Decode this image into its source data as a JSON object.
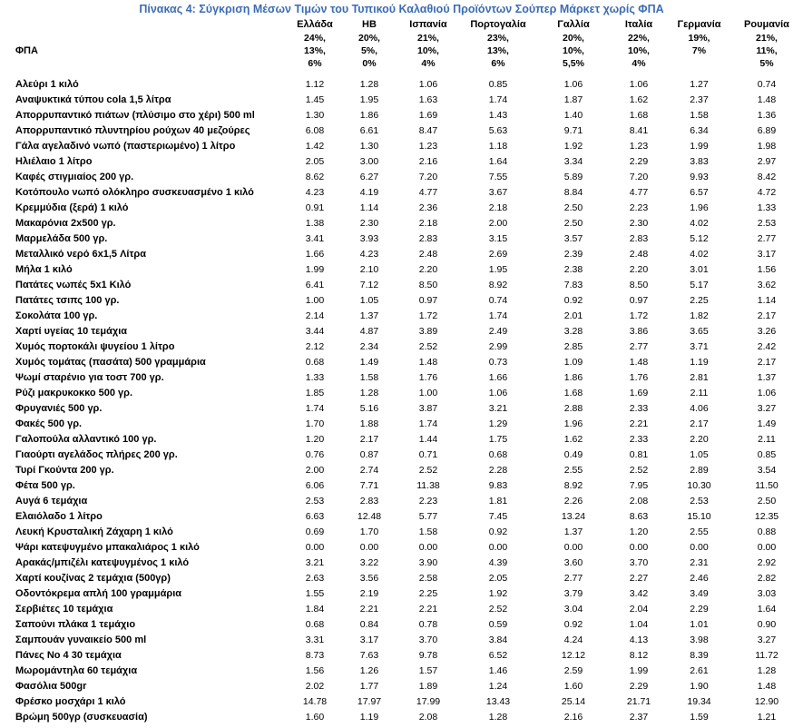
{
  "title": "Πίνακας 4: Σύγκριση Μέσων Τιμών του Τυπικού Καλαθιού Προϊόντων Σούπερ Μάρκετ χωρίς ΦΠΑ",
  "colors": {
    "title_blue": "#3c6cb4",
    "text": "#000000"
  },
  "table": {
    "countries": [
      "Ελλάδα",
      "ΗΒ",
      "Ισπανία",
      "Πορτογαλία",
      "Γαλλία",
      "Ιταλία",
      "Γερμανία",
      "Ρουμανία"
    ],
    "vat": {
      "label": "ΦΠΑ",
      "rates_by_country": [
        [
          "24%,",
          "13%,",
          "6%"
        ],
        [
          "20%,",
          "5%,",
          "0%"
        ],
        [
          "21%,",
          "10%,",
          "4%"
        ],
        [
          "23%,",
          "13%,",
          "6%"
        ],
        [
          "20%,",
          "10%,",
          "5,5%"
        ],
        [
          "22%,",
          "10%,",
          "4%"
        ],
        [
          "19%,",
          "7%"
        ],
        [
          "21%,",
          "11%,",
          "5%"
        ]
      ]
    },
    "rows": [
      {
        "label": "Αλεύρι 1 κιλό",
        "values": [
          "1.12",
          "1.28",
          "1.06",
          "0.85",
          "1.06",
          "1.06",
          "1.27",
          "0.74"
        ]
      },
      {
        "label": "Αναψυκτικά τύπου cola 1,5 λίτρα",
        "values": [
          "1.45",
          "1.95",
          "1.63",
          "1.74",
          "1.87",
          "1.62",
          "2.37",
          "1.48"
        ]
      },
      {
        "label": "Απορρυπαντικό πιάτων (πλύσιμο στο χέρι) 500 ml",
        "values": [
          "1.30",
          "1.86",
          "1.69",
          "1.43",
          "1.40",
          "1.68",
          "1.58",
          "1.36"
        ]
      },
      {
        "label": "Απορρυπαντικό πλυντηρίου ρούχων 40 μεζούρες",
        "values": [
          "6.08",
          "6.61",
          "8.47",
          "5.63",
          "9.71",
          "8.41",
          "6.34",
          "6.89"
        ]
      },
      {
        "label": "Γάλα αγελαδινό νωπό (παστεριωμένο) 1 λίτρο",
        "values": [
          "1.42",
          "1.30",
          "1.23",
          "1.18",
          "1.92",
          "1.23",
          "1.99",
          "1.98"
        ]
      },
      {
        "label": "Ηλιέλαιο 1 λίτρο",
        "values": [
          "2.05",
          "3.00",
          "2.16",
          "1.64",
          "3.34",
          "2.29",
          "3.83",
          "2.97"
        ]
      },
      {
        "label": "Καφές στιγμιαίος 200 γρ.",
        "values": [
          "8.62",
          "6.27",
          "7.20",
          "7.55",
          "5.89",
          "7.20",
          "9.93",
          "8.42"
        ]
      },
      {
        "label": "Κοτόπουλο νωπό ολόκληρο συσκευασμένο 1 κιλό",
        "values": [
          "4.23",
          "4.19",
          "4.77",
          "3.67",
          "8.84",
          "4.77",
          "6.57",
          "4.72"
        ]
      },
      {
        "label": "Κρεμμύδια (ξερά) 1 κιλό",
        "values": [
          "0.91",
          "1.14",
          "2.36",
          "2.18",
          "2.50",
          "2.23",
          "1.96",
          "1.33"
        ]
      },
      {
        "label": "Μακαρόνια 2x500 γρ.",
        "values": [
          "1.38",
          "2.30",
          "2.18",
          "2.00",
          "2.50",
          "2.30",
          "4.02",
          "2.53"
        ]
      },
      {
        "label": "Μαρμελάδα 500 γρ.",
        "values": [
          "3.41",
          "3.93",
          "2.83",
          "3.15",
          "3.57",
          "2.83",
          "5.12",
          "2.77"
        ]
      },
      {
        "label": "Μεταλλικό νερό 6x1,5 Λίτρα",
        "values": [
          "1.66",
          "4.23",
          "2.48",
          "2.69",
          "2.39",
          "2.48",
          "4.02",
          "3.17"
        ]
      },
      {
        "label": "Μήλα 1 κιλό",
        "values": [
          "1.99",
          "2.10",
          "2.20",
          "1.95",
          "2.38",
          "2.20",
          "3.01",
          "1.56"
        ]
      },
      {
        "label": "Πατάτες νωπές 5x1 Κιλό",
        "values": [
          "6.41",
          "7.12",
          "8.50",
          "8.92",
          "7.83",
          "8.50",
          "5.17",
          "3.62"
        ]
      },
      {
        "label": "Πατάτες τσιπς 100 γρ.",
        "values": [
          "1.00",
          "1.05",
          "0.97",
          "0.74",
          "0.92",
          "0.97",
          "2.25",
          "1.14"
        ]
      },
      {
        "label": "Σοκολάτα 100 γρ.",
        "values": [
          "2.14",
          "1.37",
          "1.72",
          "1.74",
          "2.01",
          "1.72",
          "1.82",
          "2.17"
        ]
      },
      {
        "label": "Χαρτί υγείας 10 τεμάχια",
        "values": [
          "3.44",
          "4.87",
          "3.89",
          "2.49",
          "3.28",
          "3.86",
          "3.65",
          "3.26"
        ]
      },
      {
        "label": "Χυμός πορτοκάλι ψυγείου 1 λίτρο",
        "values": [
          "2.12",
          "2.34",
          "2.52",
          "2.99",
          "2.85",
          "2.77",
          "3.71",
          "2.42"
        ]
      },
      {
        "label": "Χυμός τομάτας (πασάτα) 500 γραμμάρια",
        "values": [
          "0.68",
          "1.49",
          "1.48",
          "0.73",
          "1.09",
          "1.48",
          "1.19",
          "2.17"
        ]
      },
      {
        "label": "Ψωμί σταρένιο για τοστ 700 γρ.",
        "values": [
          "1.33",
          "1.58",
          "1.76",
          "1.66",
          "1.86",
          "1.76",
          "2.81",
          "1.37"
        ]
      },
      {
        "label": "Ρύζι μακρυκοκκο 500 γρ.",
        "values": [
          "1.85",
          "1.28",
          "1.00",
          "1.06",
          "1.68",
          "1.69",
          "2.11",
          "1.06"
        ]
      },
      {
        "label": "Φρυγανιές 500 γρ.",
        "values": [
          "1.74",
          "5.16",
          "3.87",
          "3.21",
          "2.88",
          "2.33",
          "4.06",
          "3.27"
        ]
      },
      {
        "label": "Φακές 500 γρ.",
        "values": [
          "1.70",
          "1.88",
          "1.74",
          "1.29",
          "1.96",
          "2.21",
          "2.17",
          "1.49"
        ]
      },
      {
        "label": "Γαλοπούλα αλλαντικό 100 γρ.",
        "values": [
          "1.20",
          "2.17",
          "1.44",
          "1.75",
          "1.62",
          "2.33",
          "2.20",
          "2.11"
        ]
      },
      {
        "label": "Γιαούρτι αγελάδος πλήρες 200 γρ.",
        "values": [
          "0.76",
          "0.87",
          "0.71",
          "0.68",
          "0.49",
          "0.81",
          "1.05",
          "0.85"
        ]
      },
      {
        "label": "Τυρί Γκούντα 200 γρ.",
        "values": [
          "2.00",
          "2.74",
          "2.52",
          "2.28",
          "2.55",
          "2.52",
          "2.89",
          "3.54"
        ]
      },
      {
        "label": "Φέτα 500 γρ.",
        "values": [
          "6.06",
          "7.71",
          "11.38",
          "9.83",
          "8.92",
          "7.95",
          "10.30",
          "11.50"
        ]
      },
      {
        "label": "Αυγά 6 τεμάχια",
        "values": [
          "2.53",
          "2.83",
          "2.23",
          "1.81",
          "2.26",
          "2.08",
          "2.53",
          "2.50"
        ]
      },
      {
        "label": "Ελαιόλαδο 1 λίτρο",
        "values": [
          "6.63",
          "12.48",
          "5.77",
          "7.45",
          "13.24",
          "8.63",
          "15.10",
          "12.35"
        ]
      },
      {
        "label": "Λευκή Κρυσταλική Ζάχαρη 1 κιλό",
        "values": [
          "0.69",
          "1.70",
          "1.58",
          "0.92",
          "1.37",
          "1.20",
          "2.55",
          "0.88"
        ]
      },
      {
        "label": "Ψάρι κατεψυγμένο μπακαλιάρος 1 κιλό",
        "values": [
          "0.00",
          "0.00",
          "0.00",
          "0.00",
          "0.00",
          "0.00",
          "0.00",
          "0.00"
        ]
      },
      {
        "label": "Αρακάς/μπιζέλι κατεψυγμένος 1 κιλό",
        "values": [
          "3.21",
          "3.22",
          "3.90",
          "4.39",
          "3.60",
          "3.70",
          "2.31",
          "2.92"
        ]
      },
      {
        "label": "Χαρτί κουζίνας 2 τεμάχια (500γρ)",
        "values": [
          "2.63",
          "3.56",
          "2.58",
          "2.05",
          "2.77",
          "2.27",
          "2.46",
          "2.82"
        ]
      },
      {
        "label": "Οδοντόκρεμα απλή 100 γραμμάρια",
        "values": [
          "1.55",
          "2.19",
          "2.25",
          "1.92",
          "3.79",
          "3.42",
          "3.49",
          "3.03"
        ]
      },
      {
        "label": "Σερβιέτες 10 τεμάχια",
        "values": [
          "1.84",
          "2.21",
          "2.21",
          "2.52",
          "3.04",
          "2.04",
          "2.29",
          "1.64"
        ]
      },
      {
        "label": "Σαπούνι  πλάκα 1 τεμάχιο",
        "values": [
          "0.68",
          "0.84",
          "0.78",
          "0.59",
          "0.92",
          "1.04",
          "1.01",
          "0.90"
        ]
      },
      {
        "label": "Σαμπουάν γυναικείο 500 ml",
        "values": [
          "3.31",
          "3.17",
          "3.70",
          "3.84",
          "4.24",
          "4.13",
          "3.98",
          "3.27"
        ]
      },
      {
        "label": "Πάνες Νο 4 30 τεμάχια",
        "values": [
          "8.73",
          "7.63",
          "9.78",
          "6.52",
          "12.12",
          "8.12",
          "8.39",
          "11.72"
        ]
      },
      {
        "label": "Μωρομάντηλα 60 τεμάχια",
        "values": [
          "1.56",
          "1.26",
          "1.57",
          "1.46",
          "2.59",
          "1.99",
          "2.61",
          "1.28"
        ]
      },
      {
        "label": "Φασόλια 500gr",
        "values": [
          "2.02",
          "1.77",
          "1.89",
          "1.24",
          "1.60",
          "2.29",
          "1.90",
          "1.48"
        ]
      },
      {
        "label": "Φρέσκο μοσχάρι 1 κιλό",
        "values": [
          "14.78",
          "17.97",
          "17.99",
          "13.43",
          "25.14",
          "21.71",
          "19.34",
          "12.90"
        ]
      },
      {
        "label": "Βρώμη 500γρ (συσκευασία)",
        "values": [
          "1.60",
          "1.19",
          "2.08",
          "1.28",
          "2.16",
          "2.37",
          "1.59",
          "1.21"
        ]
      }
    ]
  }
}
